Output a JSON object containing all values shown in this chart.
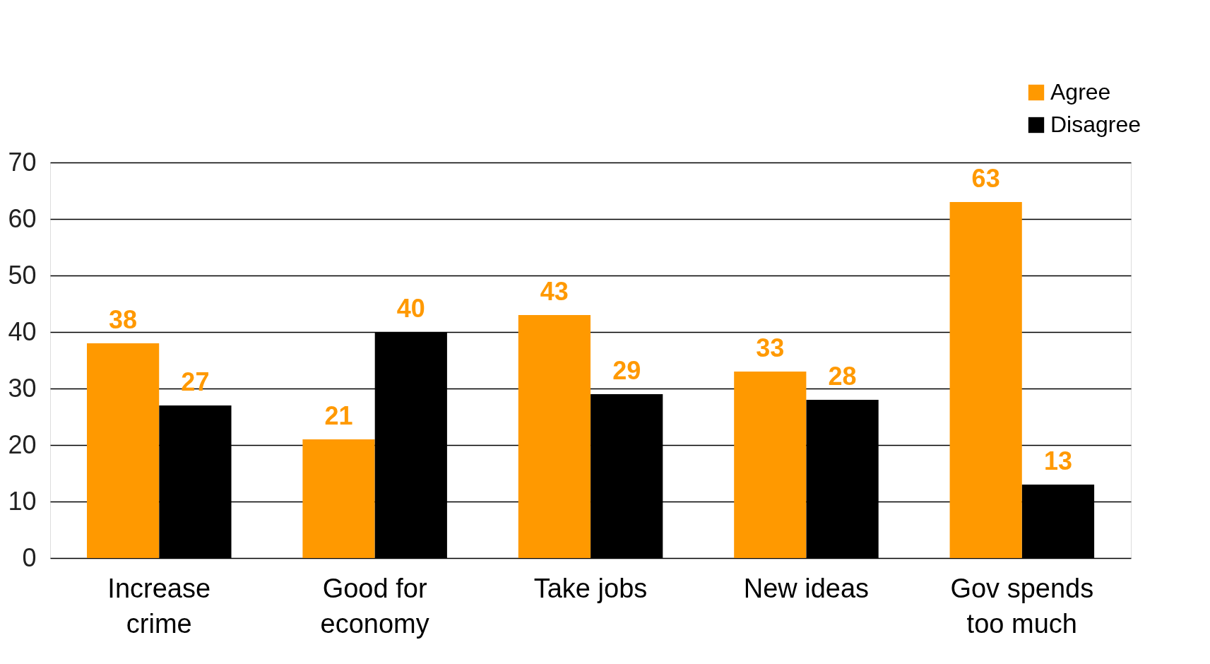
{
  "chart_data": {
    "type": "bar",
    "categories": [
      "Increase crime",
      "Good for economy",
      "Take jobs",
      "New ideas",
      "Gov spends too much"
    ],
    "series": [
      {
        "name": "Agree",
        "color": "#ff9900",
        "values": [
          38,
          21,
          43,
          33,
          63
        ]
      },
      {
        "name": "Disagree",
        "color": "#000000",
        "values": [
          27,
          40,
          29,
          28,
          13
        ]
      }
    ],
    "ylim": [
      0,
      70
    ],
    "yticks": [
      0,
      10,
      20,
      30,
      40,
      50,
      60,
      70
    ],
    "grid": "y",
    "legend": "top right",
    "data_labels": true
  }
}
